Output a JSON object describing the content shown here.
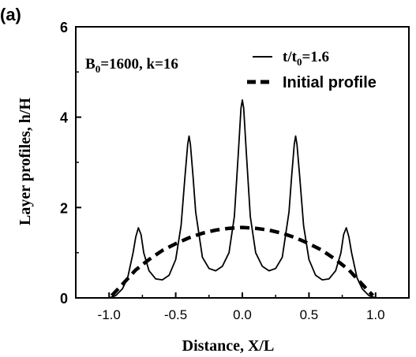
{
  "chart_data": {
    "type": "line",
    "panel_label": "(a)",
    "xlabel": "Distance, X/L",
    "ylabel": "Layer profiles, h/H",
    "xlim": [
      -1.25,
      1.25
    ],
    "ylim": [
      0,
      6
    ],
    "xticks": [
      -1.0,
      -0.5,
      0.0,
      0.5,
      1.0
    ],
    "xtick_labels": [
      "-1.0",
      "-0.5",
      "0.0",
      "0.5",
      "1.0"
    ],
    "yticks": [
      0,
      2,
      4,
      6
    ],
    "ytick_labels": [
      "0",
      "2",
      "4",
      "6"
    ],
    "grid": false,
    "annotation": {
      "text_main": "B",
      "text_sub": "0",
      "text_rest": "=1600, k=16"
    },
    "legend": {
      "placement": "top-right",
      "entries": [
        {
          "label_main": "t/t",
          "label_sub": "0",
          "label_rest": "=1.6",
          "style": "solid"
        },
        {
          "label_main": "Initial profile",
          "label_sub": "",
          "label_rest": "",
          "style": "dashed"
        }
      ]
    },
    "series": [
      {
        "style": "solid",
        "x": [
          -1.0,
          -0.95,
          -0.9,
          -0.86,
          -0.82,
          -0.8,
          -0.78,
          -0.76,
          -0.74,
          -0.7,
          -0.65,
          -0.6,
          -0.55,
          -0.5,
          -0.46,
          -0.43,
          -0.41,
          -0.4,
          -0.39,
          -0.37,
          -0.35,
          -0.3,
          -0.25,
          -0.2,
          -0.15,
          -0.1,
          -0.06,
          -0.03,
          -0.01,
          0.0,
          0.01,
          0.03,
          0.06,
          0.1,
          0.15,
          0.2,
          0.25,
          0.3,
          0.35,
          0.37,
          0.39,
          0.4,
          0.41,
          0.43,
          0.46,
          0.5,
          0.55,
          0.6,
          0.65,
          0.7,
          0.74,
          0.76,
          0.78,
          0.8,
          0.82,
          0.86,
          0.9,
          0.95,
          1.0
        ],
        "y": [
          0.0,
          0.05,
          0.2,
          0.45,
          1.0,
          1.35,
          1.55,
          1.4,
          1.0,
          0.6,
          0.42,
          0.4,
          0.5,
          0.85,
          1.6,
          2.7,
          3.4,
          3.58,
          3.4,
          2.7,
          1.9,
          0.9,
          0.65,
          0.6,
          0.7,
          1.0,
          1.8,
          3.2,
          4.2,
          4.38,
          4.2,
          3.2,
          1.8,
          1.0,
          0.7,
          0.6,
          0.65,
          0.9,
          1.9,
          2.7,
          3.4,
          3.58,
          3.4,
          2.7,
          1.6,
          0.85,
          0.5,
          0.4,
          0.42,
          0.6,
          1.0,
          1.4,
          1.55,
          1.35,
          1.0,
          0.45,
          0.2,
          0.05,
          0.0
        ]
      },
      {
        "style": "dashed",
        "x": [
          -0.98,
          -0.9,
          -0.8,
          -0.7,
          -0.6,
          -0.5,
          -0.4,
          -0.3,
          -0.2,
          -0.1,
          0.0,
          0.1,
          0.2,
          0.3,
          0.4,
          0.5,
          0.6,
          0.7,
          0.8,
          0.9,
          0.98
        ],
        "y": [
          0.05,
          0.3,
          0.62,
          0.85,
          1.05,
          1.2,
          1.33,
          1.43,
          1.5,
          1.54,
          1.56,
          1.54,
          1.5,
          1.43,
          1.33,
          1.2,
          1.05,
          0.85,
          0.62,
          0.3,
          0.05
        ]
      }
    ]
  }
}
